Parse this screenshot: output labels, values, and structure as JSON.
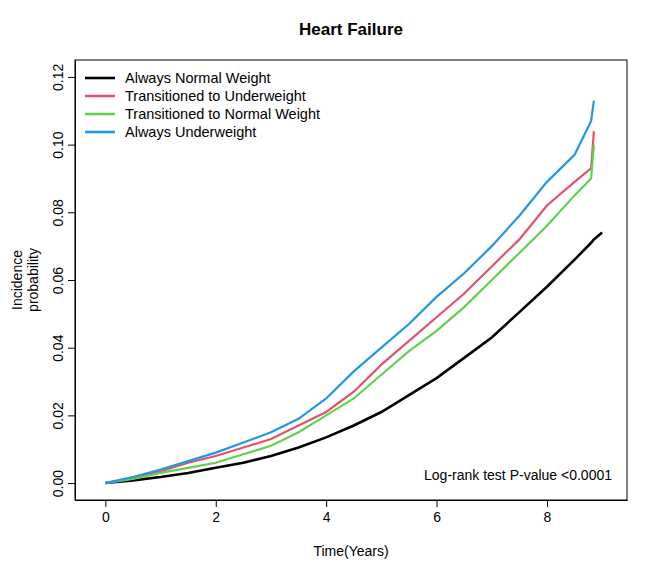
{
  "chart_data": {
    "type": "line",
    "title": "Heart Failure",
    "xlabel": "Time(Years)",
    "ylabel": "Incidence probability",
    "annotation": "Log-rank test P-value <0.0001",
    "legend": "top-left",
    "grid": false,
    "xlim": [
      -0.55,
      9.45
    ],
    "ylim": [
      -0.005,
      0.125
    ],
    "xticks": [
      0,
      2,
      4,
      6,
      8
    ],
    "yticks": [
      {
        "value": 0,
        "label": "0.00"
      },
      {
        "value": 0.02,
        "label": "0.02"
      },
      {
        "value": 0.04,
        "label": "0.04"
      },
      {
        "value": 0.06,
        "label": "0.06"
      },
      {
        "value": 0.08,
        "label": "0.08"
      },
      {
        "value": 0.1,
        "label": "0.10"
      },
      {
        "value": 0.12,
        "label": "0.12"
      }
    ],
    "x": [
      0,
      0.5,
      1,
      1.5,
      2,
      2.5,
      3,
      3.5,
      4,
      4.5,
      5,
      5.5,
      6,
      6.5,
      7,
      7.5,
      8,
      8.5,
      8.8,
      8.85,
      9
    ],
    "series": [
      {
        "name": "Always Normal Weight",
        "color": "#000000",
        "values": [
          0,
          0.0008,
          0.0018,
          0.003,
          0.0045,
          0.006,
          0.008,
          0.0105,
          0.0135,
          0.017,
          0.021,
          0.026,
          0.031,
          0.037,
          0.043,
          0.0505,
          0.058,
          0.066,
          0.071,
          0.072,
          0.074
        ]
      },
      {
        "name": "Transitioned to Underweight",
        "color": "#DF536B",
        "values": [
          0,
          0.0016,
          0.0035,
          0.006,
          0.008,
          0.0105,
          0.013,
          0.017,
          0.021,
          0.027,
          0.035,
          0.042,
          0.049,
          0.056,
          0.064,
          0.072,
          0.082,
          0.089,
          0.093,
          0.104,
          null
        ]
      },
      {
        "name": "Transitioned to Normal Weight",
        "color": "#61D04F",
        "values": [
          0,
          0.0012,
          0.003,
          0.0045,
          0.006,
          0.0085,
          0.011,
          0.015,
          0.02,
          0.025,
          0.032,
          0.039,
          0.045,
          0.052,
          0.06,
          0.068,
          0.076,
          0.085,
          0.09,
          0.1,
          null
        ]
      },
      {
        "name": "Always Underweight",
        "color": "#2297E6",
        "values": [
          0,
          0.0018,
          0.004,
          0.0065,
          0.009,
          0.012,
          0.015,
          0.019,
          0.025,
          0.033,
          0.04,
          0.047,
          0.055,
          0.062,
          0.07,
          0.079,
          0.089,
          0.097,
          0.107,
          0.113,
          null
        ]
      }
    ]
  }
}
